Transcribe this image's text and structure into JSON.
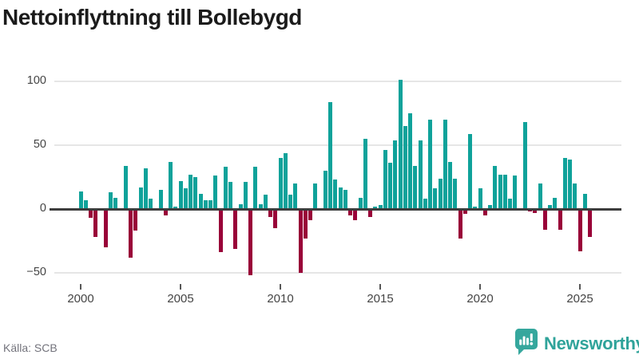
{
  "title": "Nettoinflyttning till Bollebygd",
  "source_label": "Källa: SCB",
  "branding": {
    "name": "Newsworthy",
    "icon": "newsworthy-chart-bubble-icon",
    "color": "#2fa39a"
  },
  "colors": {
    "positive_bar": "#0fa29a",
    "negative_bar": "#990038",
    "gridline": "#e6e6e6",
    "zero_line": "#3d3d3d",
    "axis_text": "#444444",
    "title_text": "#1b1b1b",
    "source_text": "#73737c"
  },
  "chart_data": {
    "type": "bar",
    "title": "Nettoinflyttning till Bollebygd",
    "xlabel": "",
    "ylabel": "",
    "period": "quarter",
    "start_period": "2000Q1",
    "end_period": "2025Q3",
    "grid": "horizontal",
    "legend": "none",
    "ylim": [
      -60,
      110
    ],
    "y_ticks": [
      100,
      50,
      0,
      -50
    ],
    "y_tick_labels": [
      "100",
      "50",
      "0",
      "−50"
    ],
    "x_tick_labels": [
      "2000",
      "2005",
      "2010",
      "2015",
      "2020",
      "2025"
    ],
    "series": [
      {
        "name": "Nettoinflyttning",
        "values": [
          14,
          7,
          -7,
          -22,
          0,
          -30,
          13,
          9,
          0,
          34,
          -38,
          -17,
          17,
          32,
          8,
          0,
          15,
          -5,
          37,
          2,
          22,
          16,
          27,
          25,
          12,
          7,
          7,
          26,
          -34,
          33,
          21,
          -31,
          4,
          21,
          -52,
          33,
          4,
          11,
          -6,
          -15,
          40,
          44,
          11,
          20,
          -50,
          -23,
          -9,
          20,
          0,
          30,
          84,
          23,
          17,
          15,
          -5,
          -9,
          9,
          55,
          -6,
          2,
          3,
          46,
          36,
          54,
          101,
          65,
          75,
          34,
          54,
          8,
          70,
          16,
          24,
          70,
          37,
          24,
          -23,
          -4,
          59,
          2,
          16,
          -5,
          3,
          34,
          27,
          27,
          8,
          26,
          0,
          68,
          -2,
          -3,
          20,
          -16,
          3,
          9,
          -16,
          40,
          39,
          20,
          -33,
          12,
          -22
        ]
      }
    ]
  }
}
